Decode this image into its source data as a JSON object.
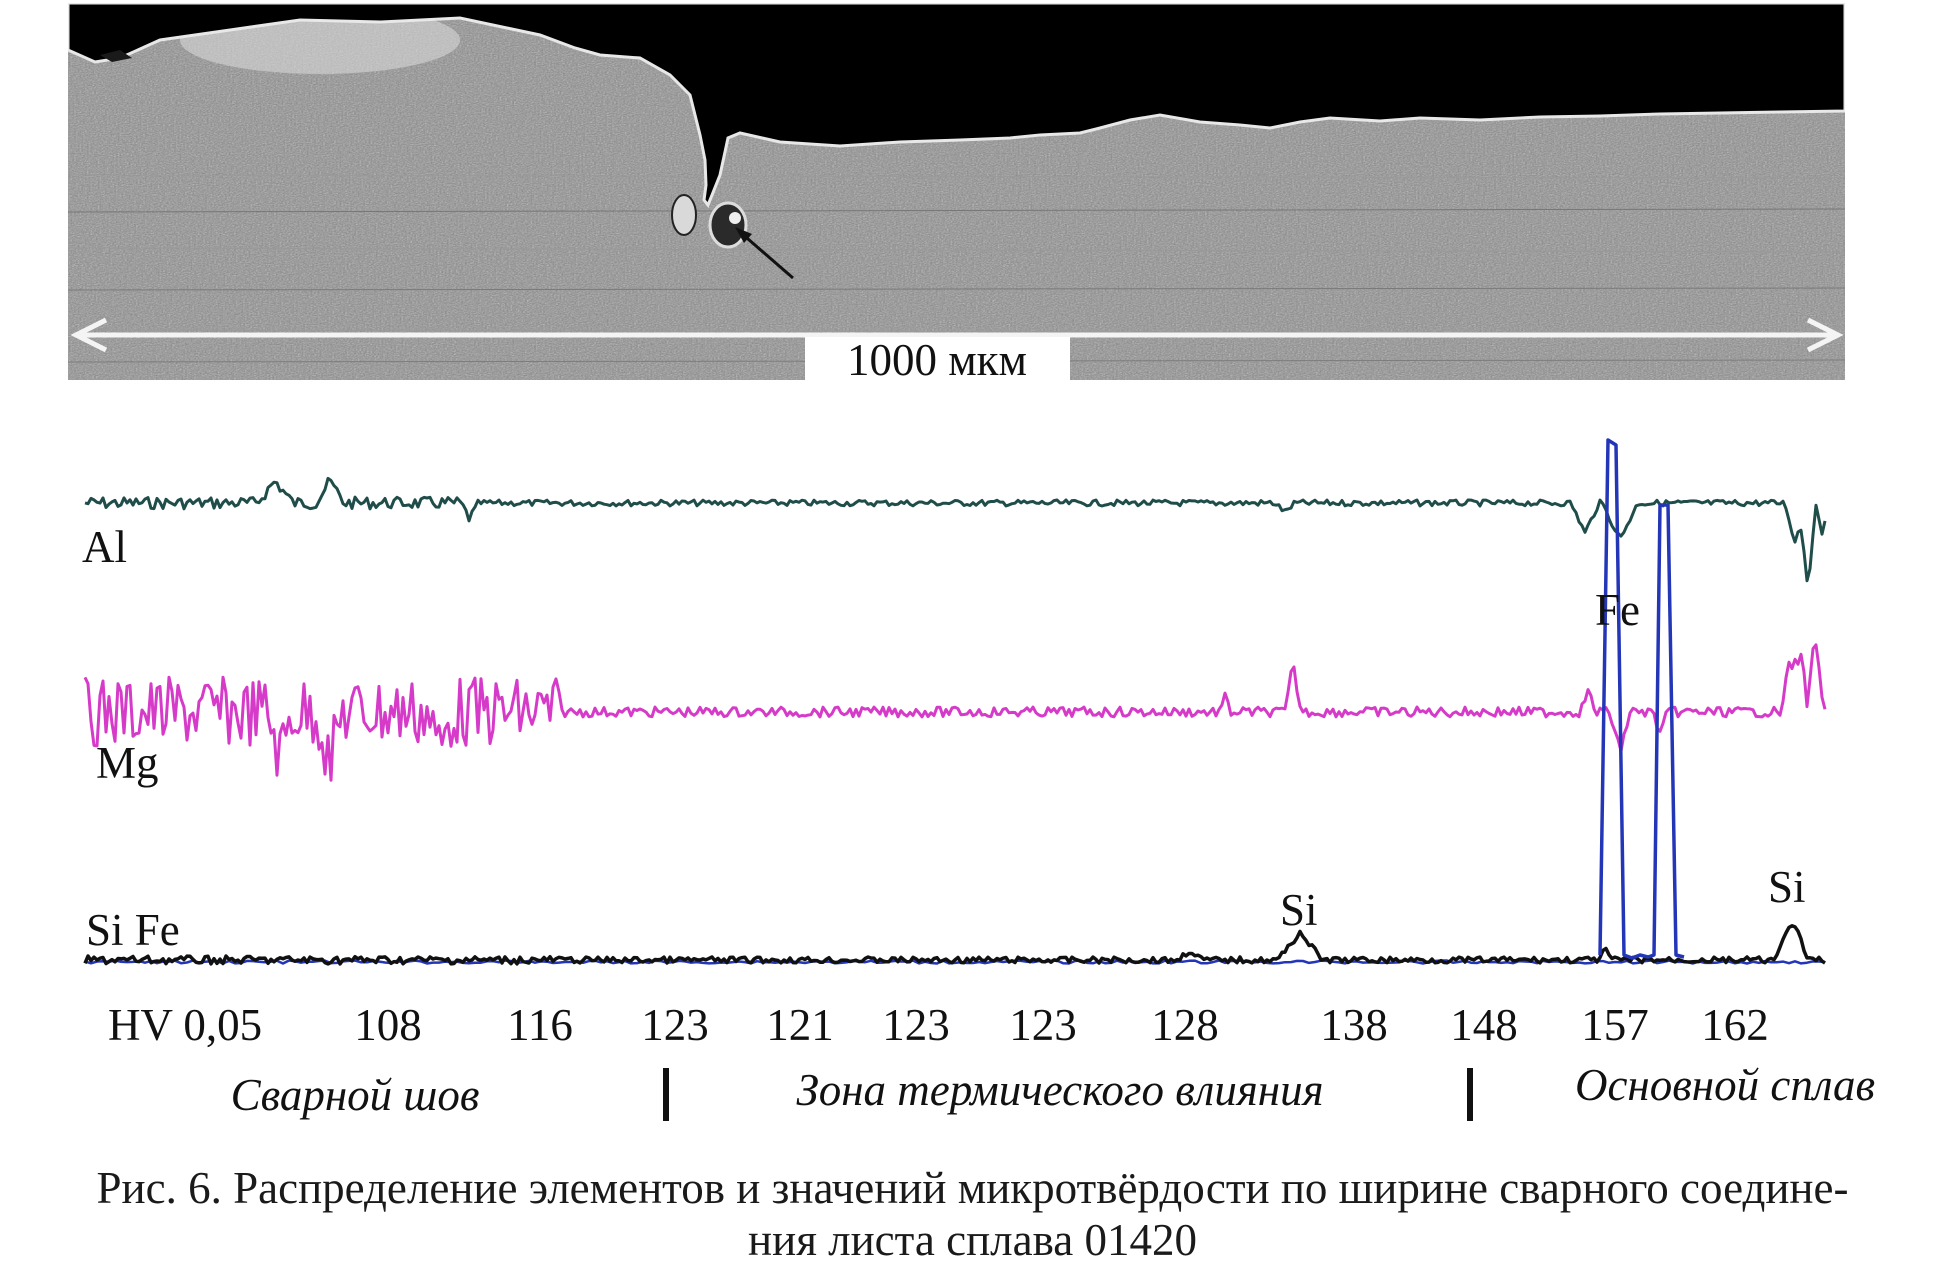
{
  "figure": {
    "scale_bar_label": "1000 мкм",
    "colors": {
      "Al": "#1f4d4a",
      "Mg": "#d63ac8",
      "Fe": "#2436b8",
      "Si": "#111111",
      "background": "#ffffff"
    },
    "line_labels": {
      "al": "Al",
      "mg": "Mg",
      "fe_peak": "Fe",
      "si_fe_base": "Si Fe",
      "si_peak_1": "Si",
      "si_peak_2": "Si"
    },
    "hv": {
      "label": "HV 0,05",
      "values": [
        "108",
        "116",
        "123",
        "121",
        "123",
        "123",
        "128",
        "138",
        "148",
        "157",
        "162"
      ]
    },
    "zones": [
      "Сварной шов",
      "Зона термического влияния",
      "Основной сплав"
    ]
  },
  "caption": {
    "line1": "Рис. 6. Распределение элементов и значений микротвёрдости по ширине сварного соедине-",
    "line2": "ния листа сплава 01420"
  }
}
